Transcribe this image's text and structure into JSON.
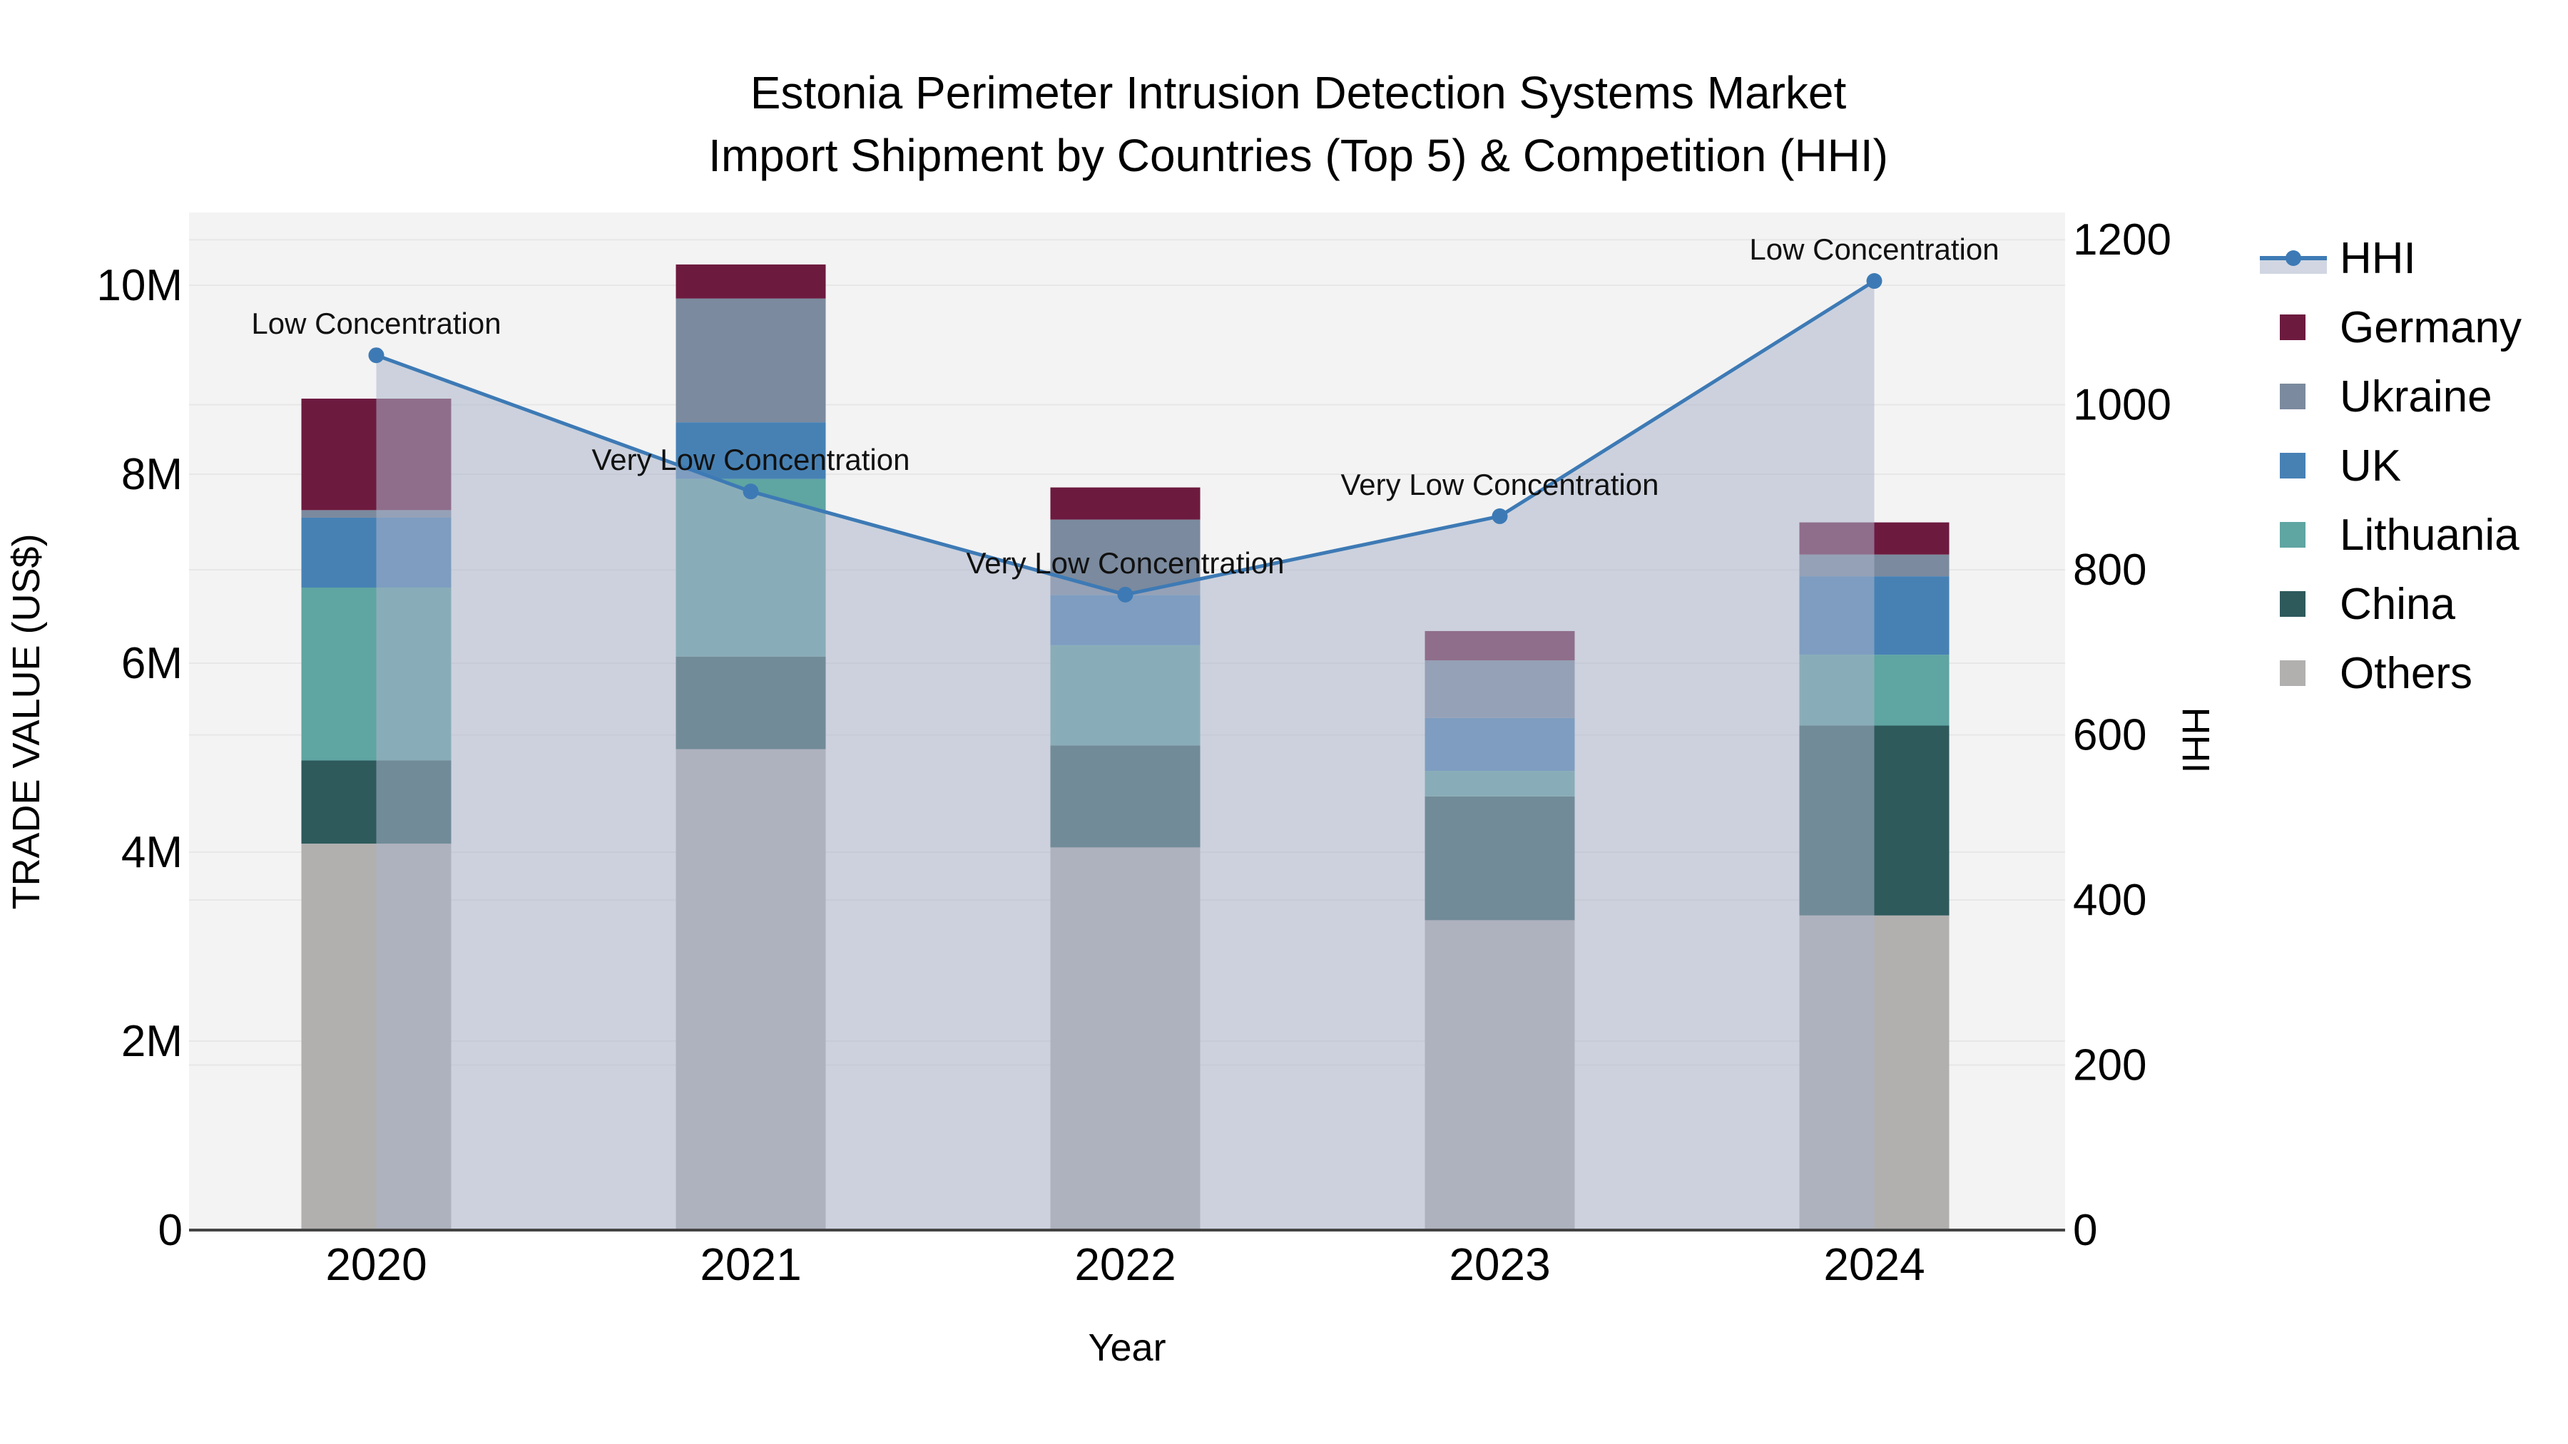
{
  "title": {
    "line1": "Estonia Perimeter Intrusion Detection Systems Market",
    "line2": "Import Shipment by Countries (Top 5) & Competition (HHI)"
  },
  "axes": {
    "x": {
      "title": "Year"
    },
    "y_left": {
      "title": "TRADE VALUE (US$)",
      "tick_labels": [
        "0",
        "2M",
        "4M",
        "6M",
        "8M",
        "10M"
      ],
      "tick_values": [
        0,
        2,
        4,
        6,
        8,
        10
      ]
    },
    "y_right": {
      "title": "HHI",
      "tick_labels": [
        "0",
        "200",
        "400",
        "600",
        "800",
        "1000",
        "1200"
      ],
      "tick_values": [
        0,
        200,
        400,
        600,
        800,
        1000,
        1200
      ]
    }
  },
  "legend": {
    "items": [
      {
        "label": "HHI",
        "type": "line",
        "color": "#3d7ab5"
      },
      {
        "label": "Germany",
        "type": "square",
        "color": "#6d1a3f"
      },
      {
        "label": "Ukraine",
        "type": "square",
        "color": "#7b8a9e"
      },
      {
        "label": "UK",
        "type": "square",
        "color": "#4781b4"
      },
      {
        "label": "Lithuania",
        "type": "square",
        "color": "#5fa5a2"
      },
      {
        "label": "China",
        "type": "square",
        "color": "#2e5a5c"
      },
      {
        "label": "Others",
        "type": "square",
        "color": "#b1b0af"
      }
    ]
  },
  "chart_data": {
    "type": "bar+line",
    "title": "Estonia Perimeter Intrusion Detection Systems Market Import Shipment by Countries (Top 5) & Competition (HHI)",
    "xlabel": "Year",
    "ylabel_left": "TRADE VALUE (US$)",
    "ylabel_right": "HHI",
    "unit_left": "million US$",
    "categories": [
      "2020",
      "2021",
      "2022",
      "2023",
      "2024"
    ],
    "stack_order_bottom_to_top": [
      "Others",
      "China",
      "Lithuania",
      "UK",
      "Ukraine",
      "Germany"
    ],
    "series": [
      {
        "name": "Germany",
        "color": "#6d1a3f",
        "values": [
          1.18,
          0.36,
          0.34,
          0.31,
          0.34
        ]
      },
      {
        "name": "Ukraine",
        "color": "#7b8a9e",
        "values": [
          0.08,
          1.31,
          0.8,
          0.61,
          0.23
        ]
      },
      {
        "name": "UK",
        "color": "#4781b4",
        "values": [
          0.74,
          0.6,
          0.53,
          0.56,
          0.83
        ]
      },
      {
        "name": "Lithuania",
        "color": "#5fa5a2",
        "values": [
          1.83,
          1.88,
          1.06,
          0.27,
          0.75
        ]
      },
      {
        "name": "China",
        "color": "#2e5a5c",
        "values": [
          0.88,
          0.98,
          1.08,
          1.31,
          2.01
        ]
      },
      {
        "name": "Others",
        "color": "#b1b0af",
        "values": [
          4.09,
          5.09,
          4.05,
          3.28,
          3.33
        ]
      }
    ],
    "bar_totals": [
      8.8,
      10.22,
      7.86,
      6.34,
      7.49
    ],
    "hhi": {
      "name": "HHI",
      "values": [
        1060,
        895,
        770,
        865,
        1150
      ],
      "annotations": [
        "Low Concentration",
        "Very Low Concentration",
        "Very Low Concentration",
        "Very Low Concentration",
        "Low Concentration"
      ],
      "line_color": "#3d7ab5",
      "area_color": "rgba(172,181,202,0.55)"
    },
    "ylim_left": [
      0,
      10.77
    ],
    "ylim_right": [
      0,
      1233
    ],
    "grid": true,
    "legend_position": "right"
  },
  "style": {
    "plot_bg": "#f3f3f3",
    "grid_color": "#e7e7e7",
    "spine_color": "#444444",
    "marker_radius": 11
  }
}
